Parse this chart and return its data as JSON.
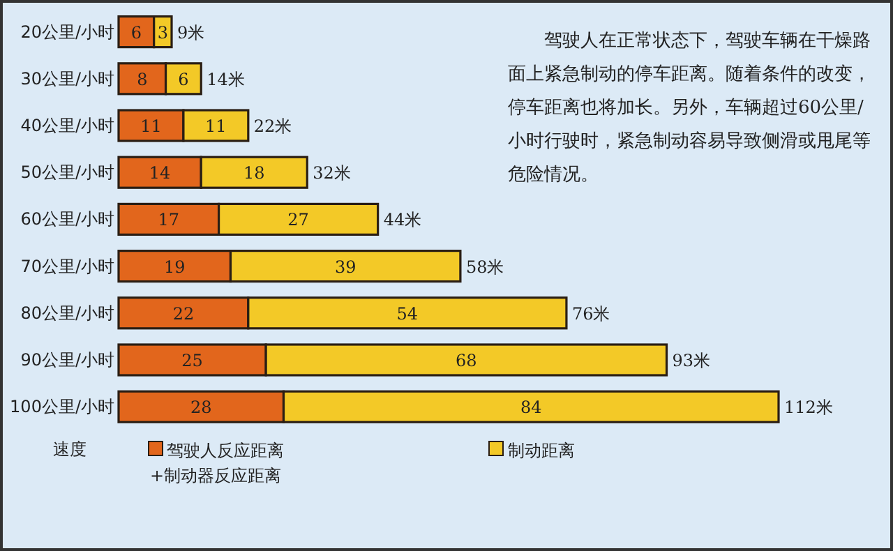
{
  "chart_data": {
    "type": "bar",
    "orientation": "horizontal",
    "stacked": true,
    "data_labels": true,
    "legend": "bottom",
    "ylabel": "速度",
    "categories": [
      "20公里/小时",
      "30公里/小时",
      "40公里/小时",
      "50公里/小时",
      "60公里/小时",
      "70公里/小时",
      "80公里/小时",
      "90公里/小时",
      "100公里/小时"
    ],
    "series": [
      {
        "name": "驾驶人反应距离+制动器反应距离",
        "color": "#e2661c",
        "values": [
          6,
          8,
          11,
          14,
          17,
          19,
          22,
          25,
          28
        ]
      },
      {
        "name": "制动距离",
        "color": "#f3c927",
        "values": [
          3,
          6,
          11,
          18,
          27,
          39,
          54,
          68,
          84
        ]
      }
    ],
    "totals": [
      "9米",
      "14米",
      "22米",
      "32米",
      "44米",
      "58米",
      "76米",
      "93米",
      "112米"
    ],
    "annotations": [
      "驾驶人在正常状态下，驾驶车辆在干燥路面上紧急制动的停车距离。随着条件的改变，停车距离也将加长。另外，车辆超过60公里/小时行驶时，紧急制动容易导致侧滑或甩尾等危险情况。"
    ]
  }
}
